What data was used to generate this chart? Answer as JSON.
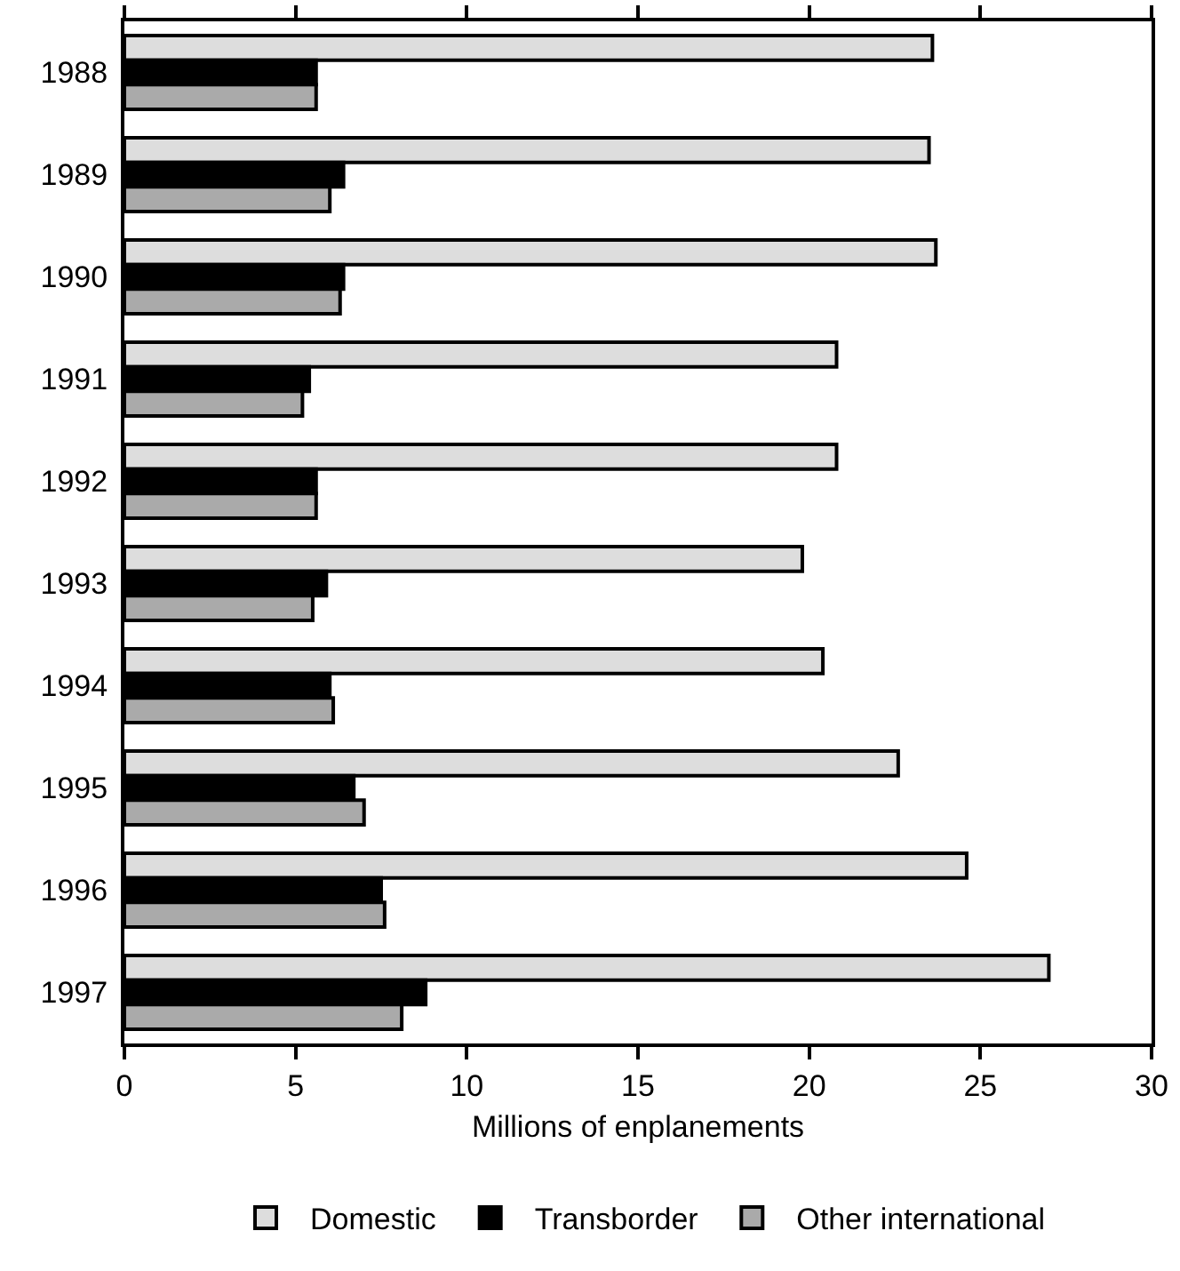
{
  "chart_data": {
    "type": "bar",
    "orientation": "horizontal",
    "xlabel": "Millions of enplanements",
    "categories": [
      "1988",
      "1989",
      "1990",
      "1991",
      "1992",
      "1993",
      "1994",
      "1995",
      "1996",
      "1997"
    ],
    "series": [
      {
        "name": "Domestic",
        "color": "#dddddd",
        "values": [
          23.6,
          23.5,
          23.7,
          20.8,
          20.8,
          19.8,
          20.4,
          22.6,
          24.6,
          27.0
        ]
      },
      {
        "name": "Transborder",
        "color": "#000000",
        "values": [
          5.6,
          6.4,
          6.4,
          5.4,
          5.6,
          5.9,
          6.0,
          6.7,
          7.5,
          8.8
        ]
      },
      {
        "name": "Other international",
        "color": "#aaaaaa",
        "values": [
          5.6,
          6.0,
          6.3,
          5.2,
          5.6,
          5.5,
          6.1,
          7.0,
          7.6,
          8.1
        ]
      }
    ],
    "xlim": [
      0,
      30
    ],
    "xticks": [
      0,
      5,
      10,
      15,
      20,
      25,
      30
    ],
    "grid": false,
    "legend": "bottom"
  }
}
